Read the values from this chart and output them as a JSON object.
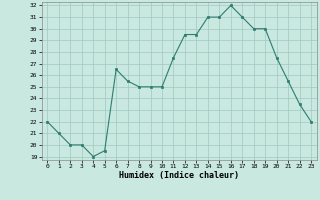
{
  "x": [
    0,
    1,
    2,
    3,
    4,
    5,
    6,
    7,
    8,
    9,
    10,
    11,
    12,
    13,
    14,
    15,
    16,
    17,
    18,
    19,
    20,
    21,
    22,
    23
  ],
  "y": [
    22,
    21,
    20,
    20,
    19,
    19.5,
    26.5,
    25.5,
    25,
    25,
    25,
    27.5,
    29.5,
    29.5,
    31,
    31,
    32,
    31,
    30,
    30,
    27.5,
    25.5,
    23.5,
    22
  ],
  "line_color": "#2e7d6e",
  "marker_color": "#2e7d6e",
  "bg_color": "#c8e8e0",
  "grid_color": "#a0c8c0",
  "xlabel": "Humidex (Indice chaleur)",
  "ylim": [
    19,
    32
  ],
  "xlim": [
    -0.5,
    23.5
  ],
  "yticks": [
    19,
    20,
    21,
    22,
    23,
    24,
    25,
    26,
    27,
    28,
    29,
    30,
    31,
    32
  ],
  "xticks": [
    0,
    1,
    2,
    3,
    4,
    5,
    6,
    7,
    8,
    9,
    10,
    11,
    12,
    13,
    14,
    15,
    16,
    17,
    18,
    19,
    20,
    21,
    22,
    23
  ]
}
